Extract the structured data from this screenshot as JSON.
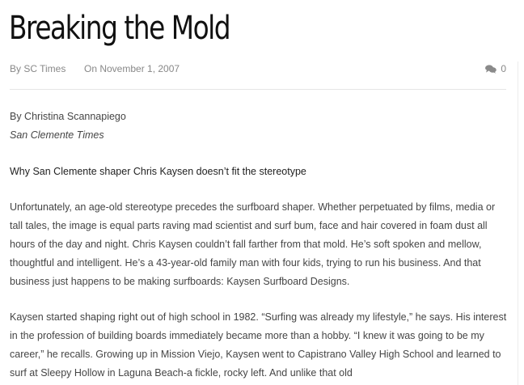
{
  "post": {
    "title": "Breaking the Mold",
    "author": "By SC Times",
    "date": "On November 1, 2007",
    "comment_count": "0",
    "comment_icon": "comments-icon"
  },
  "article": {
    "byline": "By Christina Scannapiego",
    "source": "San Clemente Times",
    "deck": "Why San Clemente shaper Chris Kaysen doesn’t fit the stereotype",
    "paragraphs": [
      "Unfortunately, an age-old stereotype precedes the surfboard shaper. Whether perpetuated by films, media or tall tales, the image is equal parts raving mad scientist and surf bum, face and hair covered in foam dust all hours of the day and night. Chris Kaysen couldn’t fall farther from that mold. He’s soft spoken and mellow, thoughtful and intelligent. He’s a 43-year-old family man with four kids, trying to run his business. And that business just happens to be making surfboards: Kaysen Surfboard Designs.",
      "Kaysen started shaping right out of high school in 1982. “Surfing was already my lifestyle,” he says. His interest in the profession of building boards immediately became more than a hobby. “I knew it was going to be my career,” he recalls. Growing up in Mission Viejo, Kaysen went to Capistrano Valley High School and learned to surf at Sleepy Hollow in Laguna Beach-a fickle, rocky left. And unlike that old"
    ]
  }
}
